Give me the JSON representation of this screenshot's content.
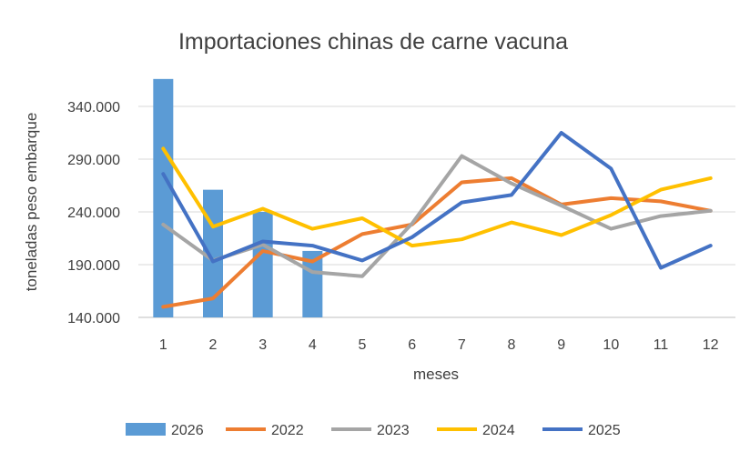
{
  "chart_data": {
    "type": "bar+line",
    "title": "Importaciones chinas de carne vacuna",
    "xlabel": "meses",
    "ylabel": "toneladas peso embarque",
    "categories": [
      "1",
      "2",
      "3",
      "4",
      "5",
      "6",
      "7",
      "8",
      "9",
      "10",
      "11",
      "12"
    ],
    "y_ticks": [
      "140.000",
      "190.000",
      "240.000",
      "290.000",
      "340.000"
    ],
    "ylim": [
      140000,
      365000
    ],
    "grid": true,
    "legend_position": "bottom",
    "bar_series": {
      "name": "2026",
      "color": "#5b9bd5",
      "values": [
        366000,
        261000,
        240000,
        203000
      ]
    },
    "series": [
      {
        "name": "2022",
        "color": "#ed7d31",
        "values": [
          150000,
          158000,
          203000,
          193000,
          219000,
          228000,
          268000,
          272000,
          247000,
          253000,
          250000,
          241000
        ]
      },
      {
        "name": "2023",
        "color": "#a5a5a5",
        "values": [
          228000,
          194000,
          209000,
          183000,
          179000,
          229000,
          293000,
          267000,
          246000,
          224000,
          236000,
          241000
        ]
      },
      {
        "name": "2024",
        "color": "#ffc000",
        "values": [
          300000,
          226000,
          243000,
          224000,
          234000,
          208000,
          214000,
          230000,
          218000,
          237000,
          261000,
          272000
        ]
      },
      {
        "name": "2025",
        "color": "#4472c4",
        "values": [
          276000,
          193000,
          212000,
          208000,
          194000,
          216000,
          249000,
          256000,
          315000,
          281000,
          187000,
          208000
        ]
      }
    ]
  }
}
